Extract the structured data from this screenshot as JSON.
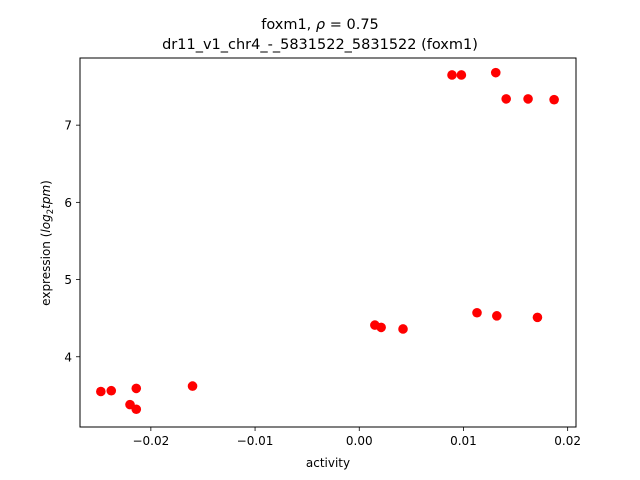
{
  "chart_data": {
    "type": "scatter",
    "title_line1_prefix": "foxm1, ",
    "title_line1_rho": "ρ",
    "title_line1_suffix": " = 0.75",
    "title_line2": "dr11_v1_chr4_-_5831522_5831522 (foxm1)",
    "xlabel": "activity",
    "ylabel_prefix": "expression (",
    "ylabel_log": "log",
    "ylabel_sub": "2",
    "ylabel_tpm": "tpm",
    "ylabel_suffix": ")",
    "xlim": [
      -0.0268,
      0.0208
    ],
    "ylim": [
      3.09,
      7.87
    ],
    "xticks": [
      {
        "value": -0.02,
        "label": "−0.02"
      },
      {
        "value": -0.01,
        "label": "−0.01"
      },
      {
        "value": 0.0,
        "label": "0.00"
      },
      {
        "value": 0.01,
        "label": "0.01"
      },
      {
        "value": 0.02,
        "label": "0.02"
      }
    ],
    "yticks": [
      {
        "value": 4,
        "label": "4"
      },
      {
        "value": 5,
        "label": "5"
      },
      {
        "value": 6,
        "label": "6"
      },
      {
        "value": 7,
        "label": "7"
      }
    ],
    "marker_color": "#ff0000",
    "grid": false,
    "points": [
      {
        "x": -0.0248,
        "y": 3.55
      },
      {
        "x": -0.0238,
        "y": 3.56
      },
      {
        "x": -0.022,
        "y": 3.38
      },
      {
        "x": -0.0214,
        "y": 3.32
      },
      {
        "x": -0.0214,
        "y": 3.59
      },
      {
        "x": -0.016,
        "y": 3.62
      },
      {
        "x": 0.0015,
        "y": 4.41
      },
      {
        "x": 0.0021,
        "y": 4.38
      },
      {
        "x": 0.0042,
        "y": 4.36
      },
      {
        "x": 0.0089,
        "y": 7.65
      },
      {
        "x": 0.0098,
        "y": 7.65
      },
      {
        "x": 0.0113,
        "y": 4.57
      },
      {
        "x": 0.0131,
        "y": 7.68
      },
      {
        "x": 0.0132,
        "y": 4.53
      },
      {
        "x": 0.0141,
        "y": 7.34
      },
      {
        "x": 0.0162,
        "y": 7.34
      },
      {
        "x": 0.0171,
        "y": 4.51
      },
      {
        "x": 0.0187,
        "y": 7.33
      }
    ]
  }
}
